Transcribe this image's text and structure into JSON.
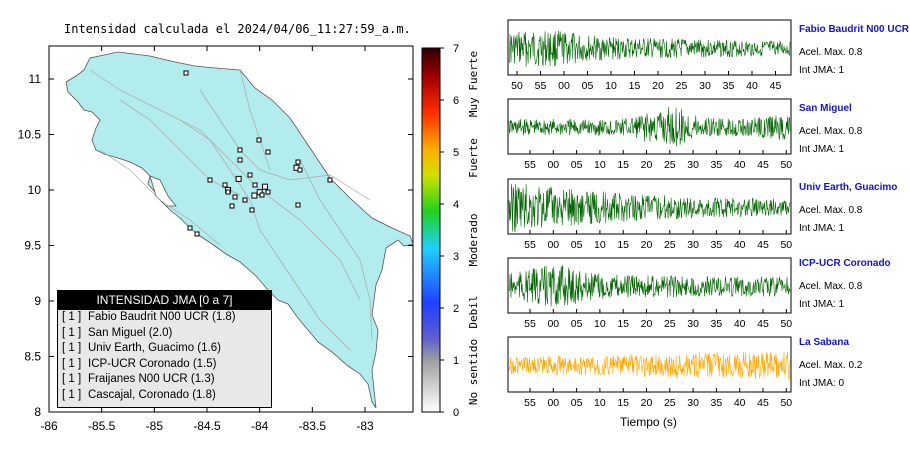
{
  "map": {
    "title": "Intensidad calculada el 2024/04/06_11:27:59_a.m.",
    "xticks": [
      "-86",
      "-85.5",
      "-85",
      "-84.5",
      "-84",
      "-83.5",
      "-83"
    ],
    "yticks": [
      "11",
      "10.5",
      "10",
      "9.5",
      "9",
      "8.5",
      "8"
    ]
  },
  "colorbar": {
    "ticks": [
      "0",
      "1",
      "2",
      "3",
      "4",
      "5",
      "6",
      "7"
    ],
    "labels": [
      "No sentido",
      "Debil",
      "Moderado",
      "Fuerte",
      "Muy Fuerte"
    ]
  },
  "legend": {
    "title": "INTENSIDAD JMA [0 a 7]",
    "rows": [
      {
        "level": "[ 1 ]",
        "text": "Fabio Baudrit N00 UCR (1.8)"
      },
      {
        "level": "[ 1 ]",
        "text": "San Miguel (2.0)"
      },
      {
        "level": "[ 1 ]",
        "text": "Univ Earth, Guacimo (1.6)"
      },
      {
        "level": "[ 1 ]",
        "text": "ICP-UCR Coronado (1.5)"
      },
      {
        "level": "[ 1 ]",
        "text": "Fraijanes N00 UCR (1.3)"
      },
      {
        "level": "[ 1 ]",
        "text": "Cascajal, Coronado (1.8)"
      }
    ]
  },
  "stations": [
    {
      "name": "Fabio Baudrit N00 UCR",
      "acel": "Acel. Max. 0.8",
      "jma": "Int JMA: 1",
      "color": "#006400",
      "ticks": [
        "50",
        "55",
        "00",
        "05",
        "10",
        "15",
        "20",
        "25",
        "30",
        "35",
        "40",
        "45"
      ]
    },
    {
      "name": "San Miguel",
      "acel": "Acel. Max. 0.8",
      "jma": "Int JMA: 1",
      "color": "#006400",
      "ticks": [
        "55",
        "00",
        "05",
        "10",
        "15",
        "20",
        "25",
        "30",
        "35",
        "40",
        "45",
        "50"
      ]
    },
    {
      "name": "Univ Earth, Guacimo",
      "acel": "Acel. Max. 0.8",
      "jma": "Int JMA: 1",
      "color": "#006400",
      "ticks": [
        "55",
        "00",
        "05",
        "10",
        "15",
        "20",
        "25",
        "30",
        "35",
        "40",
        "45",
        "50"
      ]
    },
    {
      "name": "ICP-UCR Coronado",
      "acel": "Acel. Max. 0.8",
      "jma": "Int JMA: 1",
      "color": "#006400",
      "ticks": [
        "55",
        "00",
        "05",
        "10",
        "15",
        "20",
        "25",
        "30",
        "35",
        "40",
        "45",
        "50"
      ]
    },
    {
      "name": "La Sabana",
      "acel": "Acel. Max. 0.2",
      "jma": "Int JMA: 0",
      "color": "#ffa500",
      "ticks": [
        "55",
        "00",
        "05",
        "10",
        "15",
        "20",
        "25",
        "30",
        "35",
        "40",
        "45",
        "50"
      ]
    }
  ],
  "xlabel": "Tiempo (s)",
  "chart_data": [
    {
      "type": "scatter",
      "title": "Intensidad calculada el 2024/04/06_11:27:59_a.m.",
      "xlim": [
        -86,
        -82.6
      ],
      "ylim": [
        8,
        11.3
      ],
      "series": [
        {
          "name": "Fabio Baudrit N00 UCR",
          "x": [
            -84.3
          ],
          "y": [
            10.0
          ],
          "value": 1.8
        },
        {
          "name": "San Miguel",
          "x": [
            -84.05
          ],
          "y": [
            9.95
          ],
          "value": 2.0
        },
        {
          "name": "Univ Earth, Guacimo",
          "x": [
            -83.65
          ],
          "y": [
            10.2
          ],
          "value": 1.6
        },
        {
          "name": "ICP-UCR Coronado",
          "x": [
            -84.0
          ],
          "y": [
            9.98
          ],
          "value": 1.5
        },
        {
          "name": "Fraijanes N00 UCR",
          "x": [
            -84.2
          ],
          "y": [
            10.1
          ],
          "value": 1.3
        },
        {
          "name": "Cascajal, Coronado",
          "x": [
            -83.95
          ],
          "y": [
            10.03
          ],
          "value": 1.8
        }
      ]
    },
    {
      "type": "line",
      "xlabel": "Tiempo (s)",
      "series": [
        {
          "name": "Fabio Baudrit N00 UCR",
          "peak_accel": 0.8,
          "jma": 1
        },
        {
          "name": "San Miguel",
          "peak_accel": 0.8,
          "jma": 1
        },
        {
          "name": "Univ Earth, Guacimo",
          "peak_accel": 0.8,
          "jma": 1
        },
        {
          "name": "ICP-UCR Coronado",
          "peak_accel": 0.8,
          "jma": 1
        },
        {
          "name": "La Sabana",
          "peak_accel": 0.2,
          "jma": 0
        }
      ]
    }
  ]
}
